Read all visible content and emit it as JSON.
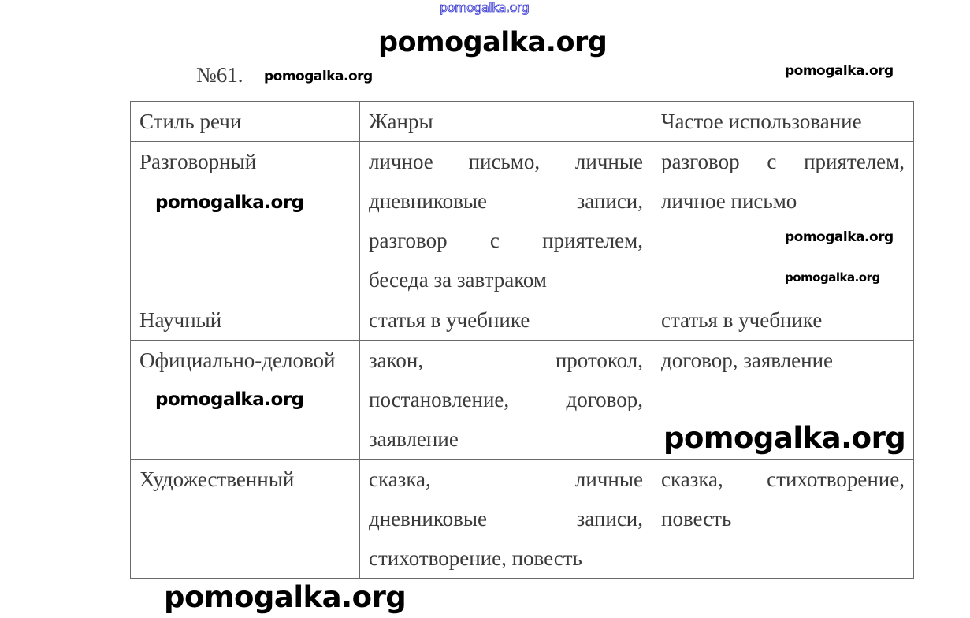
{
  "exercise_number": "№61.",
  "watermark_text": "pomogalka.org",
  "table": {
    "headers": [
      "Стиль речи",
      "Жанры",
      "Частое использование"
    ],
    "rows": [
      {
        "style": [
          "Разговорный"
        ],
        "genres": [
          "личное письмо, личные",
          "дневниковые записи,",
          "разговор с приятелем,",
          "беседа за завтраком"
        ],
        "usage": [
          "разговор с приятелем,",
          "личное письмо"
        ]
      },
      {
        "style": [
          "Научный"
        ],
        "genres": [
          "статья в учебнике"
        ],
        "usage": [
          "статья в учебнике"
        ]
      },
      {
        "style": [
          "Официально-деловой"
        ],
        "genres": [
          "закон, протокол,",
          "постановление, договор,",
          "заявление"
        ],
        "usage": [
          "договор, заявление"
        ]
      },
      {
        "style": [
          "Художественный"
        ],
        "genres": [
          "сказка, личные",
          "дневниковые записи,",
          "стихотворение, повесть"
        ],
        "usage": [
          "сказка, стихотворение,",
          "повесть"
        ]
      }
    ]
  },
  "colors": {
    "watermark_top_outline": "#3030d0",
    "border": "#6a6a6a",
    "text": "#3a3a3a"
  }
}
